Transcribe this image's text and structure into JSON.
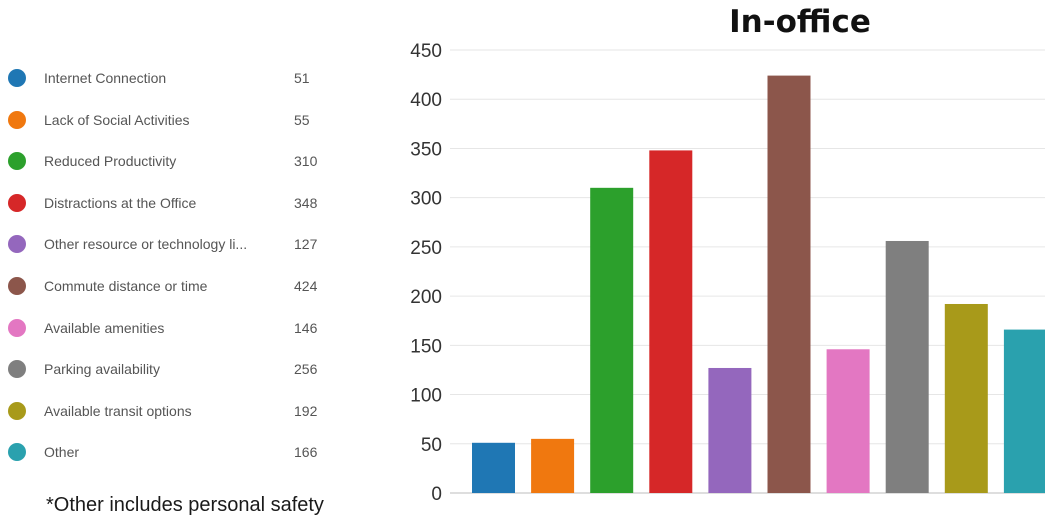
{
  "chart_data": {
    "type": "bar",
    "title": "In-office",
    "categories": [
      "Internet Connection",
      "Lack of Social Activities",
      "Reduced Productivity",
      "Distractions at the Office",
      "Other resource or technology li...",
      "Commute distance or time",
      "Available amenities",
      "Parking availability",
      "Available transit options",
      "Other"
    ],
    "values": [
      51,
      55,
      310,
      348,
      127,
      424,
      146,
      256,
      192,
      166
    ],
    "colors": [
      "#1f77b4",
      "#f0780f",
      "#2ca02c",
      "#d62728",
      "#9467bd",
      "#8c564b",
      "#e377c2",
      "#7f7f7f",
      "#a89a1a",
      "#2aa1ae"
    ],
    "yticks": [
      0,
      50,
      100,
      150,
      200,
      250,
      300,
      350,
      400,
      450
    ],
    "ylim": [
      0,
      450
    ],
    "grid": true,
    "legend_position": "left"
  },
  "footnote": "*Other includes personal safety"
}
